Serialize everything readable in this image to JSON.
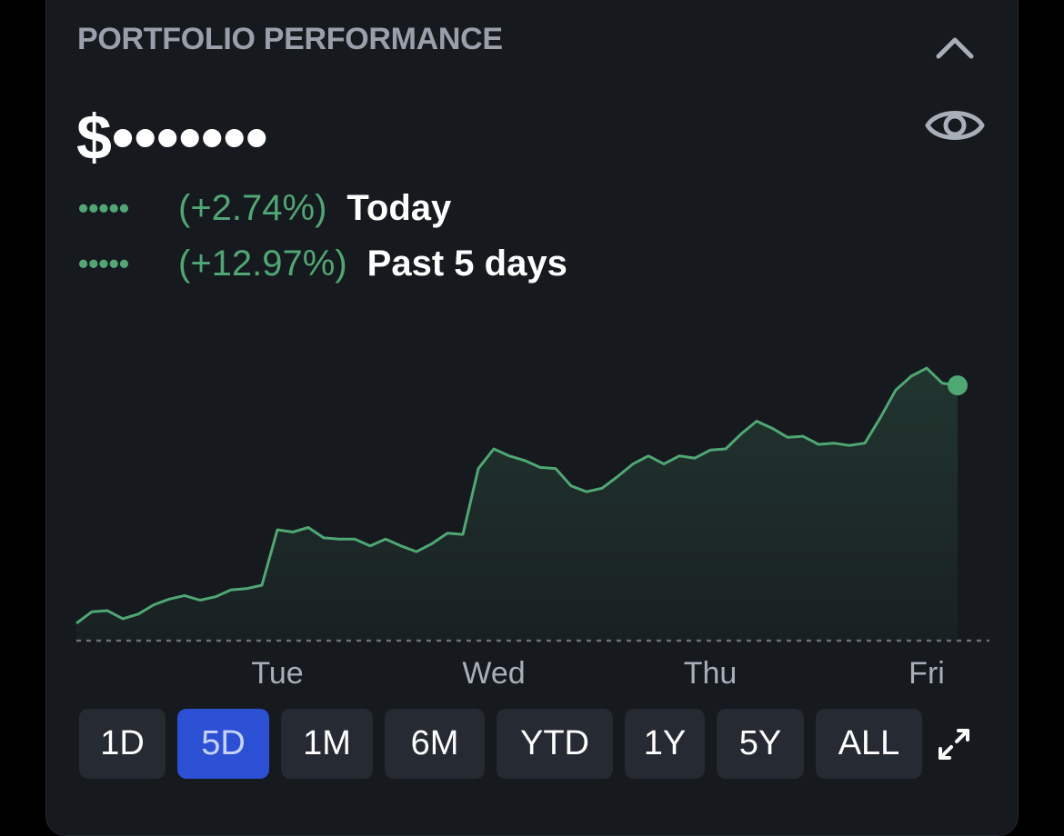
{
  "card": {
    "title": "PORTFOLIO PERFORMANCE",
    "balance": "$•••••••",
    "icons": {
      "collapse": "chevron-up-icon",
      "visibility": "eye-icon",
      "expand": "expand-icon"
    }
  },
  "stats": [
    {
      "masked": "•••••",
      "percent": "(+2.74%)",
      "label": "Today"
    },
    {
      "masked": "•••••",
      "percent": "(+12.97%)",
      "label": "Past 5 days"
    }
  ],
  "ranges": [
    {
      "label": "1D",
      "active": false
    },
    {
      "label": "5D",
      "active": true
    },
    {
      "label": "1M",
      "active": false
    },
    {
      "label": "6M",
      "active": false
    },
    {
      "label": "YTD",
      "active": false
    },
    {
      "label": "1Y",
      "active": false
    },
    {
      "label": "5Y",
      "active": false
    },
    {
      "label": "ALL",
      "active": false
    }
  ],
  "colors": {
    "positive": "#4fa774",
    "accent": "#2b50d4",
    "card": "#16191e",
    "button": "#262a32"
  },
  "chart_data": {
    "type": "area",
    "x_labels": [
      "Tue",
      "Wed",
      "Thu",
      "Fri"
    ],
    "values": [
      0.0,
      1.0,
      1.1,
      0.4,
      0.8,
      1.6,
      2.1,
      2.4,
      2.0,
      2.3,
      2.9,
      3.0,
      3.3,
      8.1,
      7.9,
      8.3,
      7.4,
      7.3,
      7.3,
      6.7,
      7.3,
      6.7,
      6.2,
      6.9,
      7.8,
      7.7,
      13.4,
      15.1,
      14.5,
      14.1,
      13.5,
      13.4,
      11.9,
      11.4,
      11.7,
      12.7,
      13.8,
      14.5,
      13.8,
      14.5,
      14.3,
      15.0,
      15.1,
      16.4,
      17.5,
      16.9,
      16.1,
      16.2,
      15.5,
      15.6,
      15.4,
      15.6,
      17.8,
      20.2,
      21.4,
      22.1,
      20.8,
      20.6
    ],
    "x_label_positions": [
      13,
      27,
      41,
      55
    ],
    "baseline": "dotted",
    "ylim": [
      -1.5,
      22.5
    ],
    "end_marker": true,
    "grid": false,
    "legend": "none"
  }
}
